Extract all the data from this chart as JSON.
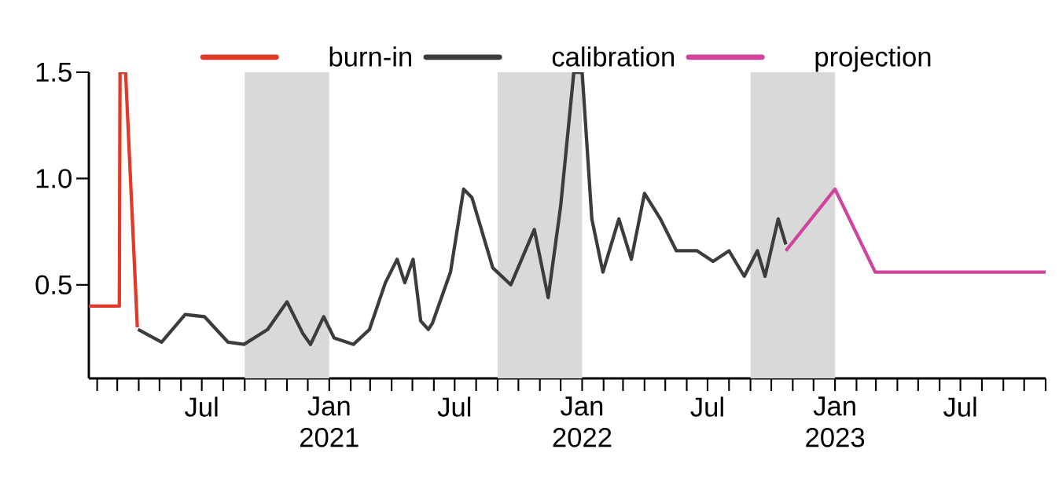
{
  "chart_data": {
    "type": "line",
    "series": [
      {
        "name": "burn-in",
        "color": "#e03a2a",
        "x": [
          "2020-01-20",
          "2020-03-04",
          "2020-03-05",
          "2020-03-13",
          "2020-03-30"
        ],
        "values": [
          0.4,
          0.4,
          1.5,
          1.5,
          0.3
        ]
      },
      {
        "name": "calibration",
        "color": "#3c3c3c",
        "x": [
          "2020-03-31",
          "2020-05-04",
          "2020-06-07",
          "2020-07-05",
          "2020-08-08",
          "2020-08-31",
          "2020-10-04",
          "2020-11-01",
          "2020-11-24",
          "2020-12-05",
          "2020-12-24",
          "2021-01-08",
          "2021-02-05",
          "2021-02-28",
          "2021-03-23",
          "2021-04-09",
          "2021-04-20",
          "2021-05-02",
          "2021-05-13",
          "2021-05-24",
          "2021-05-30",
          "2021-06-25",
          "2021-07-14",
          "2021-07-26",
          "2021-08-25",
          "2021-09-20",
          "2021-10-24",
          "2021-11-13",
          "2021-12-01",
          "2021-12-20",
          "2022-01-01",
          "2022-01-15",
          "2022-01-31",
          "2022-02-23",
          "2022-03-13",
          "2022-04-01",
          "2022-04-24",
          "2022-05-17",
          "2022-06-16",
          "2022-07-09",
          "2022-08-01",
          "2022-08-23",
          "2022-09-11",
          "2022-09-22",
          "2022-10-11",
          "2022-10-22"
        ],
        "values": [
          0.29,
          0.23,
          0.36,
          0.35,
          0.23,
          0.22,
          0.29,
          0.42,
          0.27,
          0.22,
          0.35,
          0.25,
          0.22,
          0.29,
          0.51,
          0.62,
          0.51,
          0.62,
          0.33,
          0.29,
          0.32,
          0.56,
          0.95,
          0.91,
          0.58,
          0.5,
          0.76,
          0.44,
          0.87,
          1.5,
          1.5,
          0.81,
          0.56,
          0.81,
          0.62,
          0.93,
          0.81,
          0.66,
          0.66,
          0.61,
          0.66,
          0.54,
          0.66,
          0.54,
          0.81,
          0.69
        ]
      },
      {
        "name": "projection",
        "color": "#d0449e",
        "x": [
          "2022-10-22",
          "2023-01-01",
          "2023-02-28",
          "2023-11-01"
        ],
        "values": [
          0.66,
          0.95,
          0.56,
          0.56
        ]
      }
    ],
    "bands": [
      {
        "axis": "x",
        "from": "2020-09-01",
        "to": "2021-01-01",
        "color": "#d9d9d9"
      },
      {
        "axis": "x",
        "from": "2021-09-01",
        "to": "2022-01-01",
        "color": "#d9d9d9"
      },
      {
        "axis": "x",
        "from": "2022-09-01",
        "to": "2023-01-01",
        "color": "#d9d9d9"
      }
    ],
    "xlim": [
      "2020-01-20",
      "2023-11-01"
    ],
    "ylim": [
      0.06,
      1.5
    ],
    "yticks": [
      {
        "value": 0.5,
        "label": "0.5"
      },
      {
        "value": 1.0,
        "label": "1.0"
      },
      {
        "value": 1.5,
        "label": "1.5"
      }
    ],
    "xticks": [
      {
        "value": "2020-02",
        "label": null
      },
      {
        "value": "2020-03",
        "label": null
      },
      {
        "value": "2020-04",
        "label": null
      },
      {
        "value": "2020-05",
        "label": null
      },
      {
        "value": "2020-06",
        "label": null
      },
      {
        "value": "2020-07",
        "label": "Jul"
      },
      {
        "value": "2020-08",
        "label": null
      },
      {
        "value": "2020-09",
        "label": null
      },
      {
        "value": "2020-10",
        "label": null
      },
      {
        "value": "2020-11",
        "label": null
      },
      {
        "value": "2020-12",
        "label": null
      },
      {
        "value": "2021-01",
        "label": "Jan 2021"
      },
      {
        "value": "2021-02",
        "label": null
      },
      {
        "value": "2021-03",
        "label": null
      },
      {
        "value": "2021-04",
        "label": null
      },
      {
        "value": "2021-05",
        "label": null
      },
      {
        "value": "2021-06",
        "label": null
      },
      {
        "value": "2021-07",
        "label": "Jul"
      },
      {
        "value": "2021-08",
        "label": null
      },
      {
        "value": "2021-09",
        "label": null
      },
      {
        "value": "2021-10",
        "label": null
      },
      {
        "value": "2021-11",
        "label": null
      },
      {
        "value": "2021-12",
        "label": null
      },
      {
        "value": "2022-01",
        "label": "Jan 2022"
      },
      {
        "value": "2022-02",
        "label": null
      },
      {
        "value": "2022-03",
        "label": null
      },
      {
        "value": "2022-04",
        "label": null
      },
      {
        "value": "2022-05",
        "label": null
      },
      {
        "value": "2022-06",
        "label": null
      },
      {
        "value": "2022-07",
        "label": "Jul"
      },
      {
        "value": "2022-08",
        "label": null
      },
      {
        "value": "2022-09",
        "label": null
      },
      {
        "value": "2022-10",
        "label": null
      },
      {
        "value": "2022-11",
        "label": null
      },
      {
        "value": "2022-12",
        "label": null
      },
      {
        "value": "2023-01",
        "label": "Jan 2023"
      },
      {
        "value": "2023-02",
        "label": null
      },
      {
        "value": "2023-03",
        "label": null
      },
      {
        "value": "2023-04",
        "label": null
      },
      {
        "value": "2023-05",
        "label": null
      },
      {
        "value": "2023-06",
        "label": null
      },
      {
        "value": "2023-07",
        "label": "Jul"
      },
      {
        "value": "2023-08",
        "label": null
      },
      {
        "value": "2023-09",
        "label": null
      },
      {
        "value": "2023-10",
        "label": null
      },
      {
        "value": "2023-11",
        "label": null
      }
    ],
    "legend": "top",
    "line_style": "solid",
    "marker": "none"
  }
}
